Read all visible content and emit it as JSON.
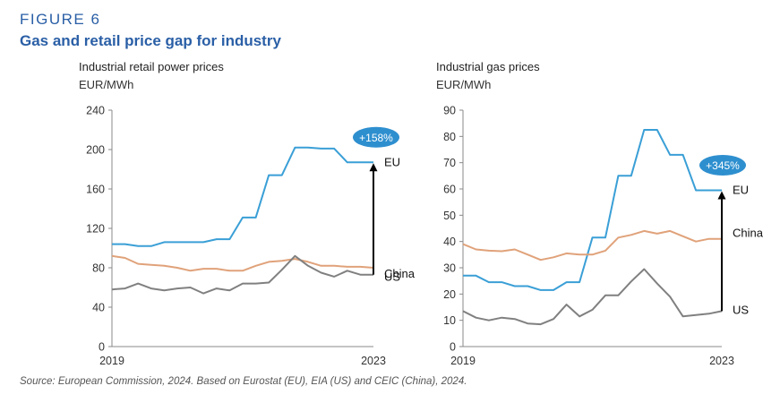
{
  "figure": {
    "label": "FIGURE 6",
    "title": "Gas and retail price gap for industry",
    "source": "Source: European Commission, 2024. Based on Eurostat (EU), EIA (US) and CEIC (China), 2024."
  },
  "colors": {
    "EU": "#3a9fd6",
    "China": "#e0a27a",
    "US": "#808080",
    "callout": "#2e8fcf",
    "axis": "#888888",
    "arrow": "#000000"
  },
  "chart_data": [
    {
      "type": "line",
      "title": "Industrial retail power prices",
      "ylabel": "EUR/MWh",
      "ylim": [
        0,
        240
      ],
      "yticks": [
        "0",
        "40",
        "80",
        "120",
        "160",
        "200",
        "240"
      ],
      "x_tick_labels": [
        "2019",
        "2023"
      ],
      "x": [
        0,
        1,
        2,
        3,
        4,
        5,
        6,
        7,
        8,
        9,
        10,
        11,
        12,
        13,
        14,
        15,
        16,
        17,
        18,
        19,
        20
      ],
      "series": [
        {
          "name": "EU",
          "values": [
            104,
            104,
            102,
            102,
            106,
            106,
            106,
            106,
            109,
            109,
            131,
            131,
            174,
            174,
            202,
            202,
            201,
            201,
            187,
            187,
            187
          ]
        },
        {
          "name": "China",
          "values": [
            92,
            90,
            84,
            83,
            82,
            80,
            77,
            79,
            79,
            77,
            77,
            82,
            86,
            87,
            89,
            86,
            82,
            82,
            81,
            81,
            80
          ]
        },
        {
          "name": "US",
          "values": [
            58,
            59,
            64,
            59,
            57,
            59,
            60,
            54,
            59,
            57,
            64,
            64,
            65,
            78,
            92,
            82,
            75,
            71,
            77,
            73,
            73
          ]
        }
      ],
      "annotation": {
        "text": "+158%"
      }
    },
    {
      "type": "line",
      "title": "Industrial gas prices",
      "ylabel": "EUR/MWh",
      "ylim": [
        0,
        90
      ],
      "yticks": [
        "0",
        "10",
        "20",
        "30",
        "40",
        "50",
        "60",
        "70",
        "80",
        "90"
      ],
      "x_tick_labels": [
        "2019",
        "2023"
      ],
      "x": [
        0,
        1,
        2,
        3,
        4,
        5,
        6,
        7,
        8,
        9,
        10,
        11,
        12,
        13,
        14,
        15,
        16,
        17,
        18,
        19,
        20
      ],
      "series": [
        {
          "name": "EU",
          "values": [
            27,
            27,
            24.5,
            24.5,
            23,
            23,
            21.5,
            21.5,
            24.5,
            24.5,
            41.5,
            41.5,
            65,
            65,
            82.5,
            82.5,
            73,
            73,
            59.5,
            59.5,
            59.5
          ]
        },
        {
          "name": "China",
          "values": [
            39,
            37,
            36.5,
            36.3,
            37,
            35,
            33,
            34,
            35.5,
            35,
            35,
            36.5,
            41.5,
            42.5,
            44,
            43,
            44,
            42,
            40,
            41,
            41
          ]
        },
        {
          "name": "US",
          "values": [
            13.5,
            11,
            10,
            11,
            10.5,
            8.8,
            8.5,
            10.5,
            16,
            11.5,
            14,
            19.5,
            19.5,
            24.8,
            29.5,
            24,
            19,
            11.5,
            12,
            12.5,
            13.5
          ]
        }
      ],
      "annotation": {
        "text": "+345%"
      }
    }
  ]
}
